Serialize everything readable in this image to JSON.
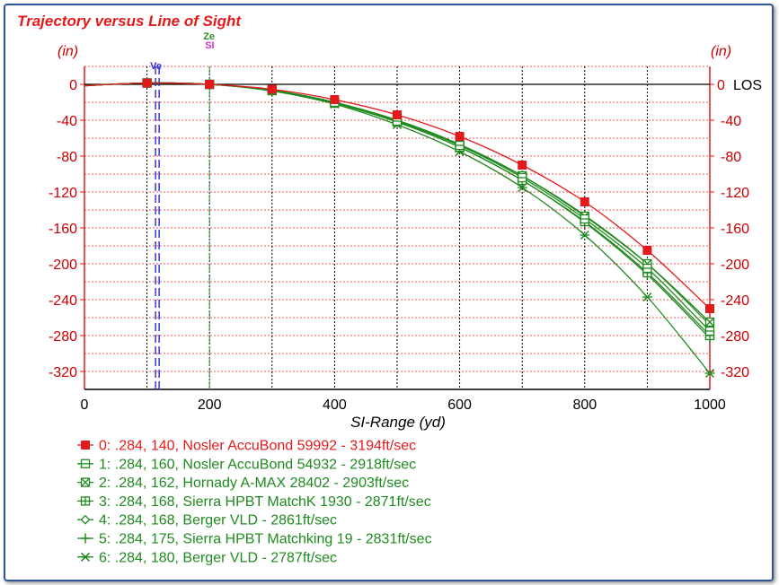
{
  "chart_data": {
    "type": "line",
    "title": "Trajectory versus Line of Sight",
    "y_unit_left": "(in)",
    "y_unit_right": "(in)",
    "xlabel": "SI-Range (yd)",
    "xlim": [
      0,
      1000
    ],
    "ylim": [
      -340,
      20
    ],
    "x_ticks": [
      0,
      200,
      400,
      600,
      800,
      1000
    ],
    "x_minor_grid": [
      100,
      300,
      500,
      700,
      900
    ],
    "y_ticks": [
      0,
      -40,
      -80,
      -120,
      -160,
      -200,
      -240,
      -280,
      -320
    ],
    "los_label": "LOS",
    "markers": [
      {
        "label": "Ve",
        "x": 118,
        "color": "#2a2ad4"
      },
      {
        "label": "Ze",
        "x": 200,
        "color": "#2e8b2e"
      },
      {
        "label": "SI",
        "x": 200,
        "color": "#cc33cc"
      }
    ],
    "x": [
      0,
      100,
      200,
      300,
      400,
      500,
      600,
      700,
      800,
      900,
      1000
    ],
    "series": [
      {
        "name": "0: .284, 140, Nosler AccuBond 59992 - 3194ft/sec",
        "color": "#e31a1c",
        "marker": "filled-square",
        "values": [
          -1.5,
          1.5,
          0,
          -5.5,
          -17,
          -34,
          -58,
          -90,
          -131,
          -185,
          -250
        ]
      },
      {
        "name": "1: .284, 160, Nosler AccuBond 54932 - 2918ft/sec",
        "color": "#1f8a1f",
        "marker": "square-minus",
        "values": [
          -1.5,
          1.5,
          0,
          -6.5,
          -20,
          -41,
          -68,
          -104,
          -150,
          -205,
          -275
        ]
      },
      {
        "name": "2: .284, 162, Hornady A-MAX 28402 - 2903ft/sec",
        "color": "#1f8a1f",
        "marker": "square-x",
        "values": [
          -1.5,
          1.5,
          0,
          -6.5,
          -20,
          -40,
          -67,
          -102,
          -147,
          -200,
          -265
        ]
      },
      {
        "name": "3: .284, 168, Sierra HPBT MatchK 1930 - 2871ft/sec",
        "color": "#1f8a1f",
        "marker": "square-plus",
        "values": [
          -1.5,
          1.5,
          0,
          -7,
          -21,
          -42,
          -70,
          -107,
          -153,
          -210,
          -280
        ]
      },
      {
        "name": "4: .284, 168, Berger VLD - 2861ft/sec",
        "color": "#1f8a1f",
        "marker": "diamond",
        "values": [
          -1.5,
          1.5,
          0,
          -6.5,
          -20,
          -40,
          -67,
          -102,
          -146,
          -200,
          -268
        ]
      },
      {
        "name": "5: .284, 175, Sierra HPBT Matchking 19 - 2831ft/sec",
        "color": "#1f8a1f",
        "marker": "plus",
        "values": [
          -1.5,
          1.5,
          0,
          -7,
          -21,
          -42,
          -70,
          -107,
          -154,
          -212,
          -283
        ]
      },
      {
        "name": "6: .284, 180, Berger VLD - 2787ft/sec",
        "color": "#1f8a1f",
        "marker": "x",
        "values": [
          -1.5,
          1.5,
          0,
          -7.5,
          -22,
          -45,
          -75,
          -115,
          -168,
          -237,
          -322
        ]
      }
    ]
  }
}
